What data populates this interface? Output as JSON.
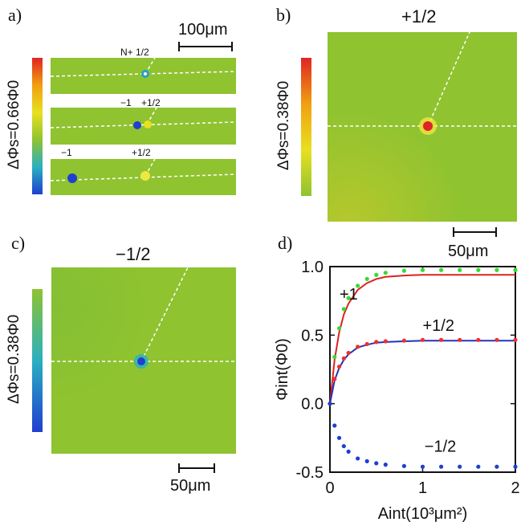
{
  "panel_a": {
    "label": "a)",
    "colorbar_label": "ΔΦs=0.66Φ0",
    "scale": "100μm",
    "strip1_label": "N+ 1/2",
    "strip2_left": "−1",
    "strip2_right": "+1/2",
    "strip3_left": "−1",
    "strip3_right": "+1/2"
  },
  "panel_b": {
    "label": "b)",
    "title": "+1/2",
    "colorbar_label": "ΔΦs=0.38Φ0",
    "scale": "50μm"
  },
  "panel_c": {
    "label": "c)",
    "title": "−1/2",
    "colorbar_label": "ΔΦs=0.38Φ0",
    "scale": "50μm"
  },
  "panel_d": {
    "label": "d)"
  },
  "colors": {
    "field": "#8fc330",
    "red_line": "#e02020",
    "blue_line": "#2233bb",
    "green_dots": "#33dd33",
    "red_dots": "#ee3030",
    "blue_dots": "#1f3fd0"
  },
  "chart_data": {
    "type": "line",
    "xlabel": "Aint(10³μm²)",
    "ylabel": "Φint(Φ0)",
    "xlim": [
      0,
      2
    ],
    "ylim": [
      -0.5,
      1.0
    ],
    "xticks": [
      0,
      1,
      2
    ],
    "xtick_labels": [
      "0",
      "1",
      "2"
    ],
    "yticks": [
      -0.5,
      0.0,
      0.5,
      1.0
    ],
    "ytick_labels": [
      "-0.5",
      "0.0",
      "0.5",
      "1.0"
    ],
    "annotations": [
      "+1",
      "+1/2",
      "−1/2"
    ],
    "x": [
      0.0,
      0.05,
      0.1,
      0.15,
      0.2,
      0.3,
      0.4,
      0.5,
      0.6,
      0.8,
      1.0,
      1.2,
      1.4,
      1.6,
      1.8,
      2.0
    ],
    "series": [
      {
        "name": "+1 model",
        "style": "line",
        "color": "#e02020",
        "values": [
          0.0,
          0.32,
          0.52,
          0.65,
          0.73,
          0.83,
          0.88,
          0.91,
          0.925,
          0.935,
          0.94,
          0.94,
          0.94,
          0.94,
          0.94,
          0.94
        ]
      },
      {
        "name": "+1 data",
        "style": "dots",
        "color": "#33dd33",
        "values": [
          0.0,
          0.34,
          0.55,
          0.69,
          0.77,
          0.86,
          0.91,
          0.94,
          0.955,
          0.97,
          0.975,
          0.975,
          0.975,
          0.975,
          0.975,
          0.975
        ]
      },
      {
        "name": "+1/2 model",
        "style": "line",
        "color": "#2233bb",
        "values": [
          0.0,
          0.17,
          0.26,
          0.32,
          0.36,
          0.41,
          0.43,
          0.445,
          0.45,
          0.455,
          0.46,
          0.46,
          0.46,
          0.46,
          0.46,
          0.46
        ]
      },
      {
        "name": "+1/2 data",
        "style": "dots",
        "color": "#ee3030",
        "values": [
          0.0,
          0.18,
          0.27,
          0.33,
          0.37,
          0.415,
          0.435,
          0.45,
          0.455,
          0.46,
          0.465,
          0.465,
          0.465,
          0.465,
          0.465,
          0.465
        ]
      },
      {
        "name": "−1/2 data",
        "style": "dots",
        "color": "#1f3fd0",
        "values": [
          0.0,
          -0.16,
          -0.25,
          -0.31,
          -0.35,
          -0.4,
          -0.42,
          -0.435,
          -0.445,
          -0.455,
          -0.46,
          -0.46,
          -0.46,
          -0.46,
          -0.46,
          -0.46
        ]
      }
    ]
  }
}
